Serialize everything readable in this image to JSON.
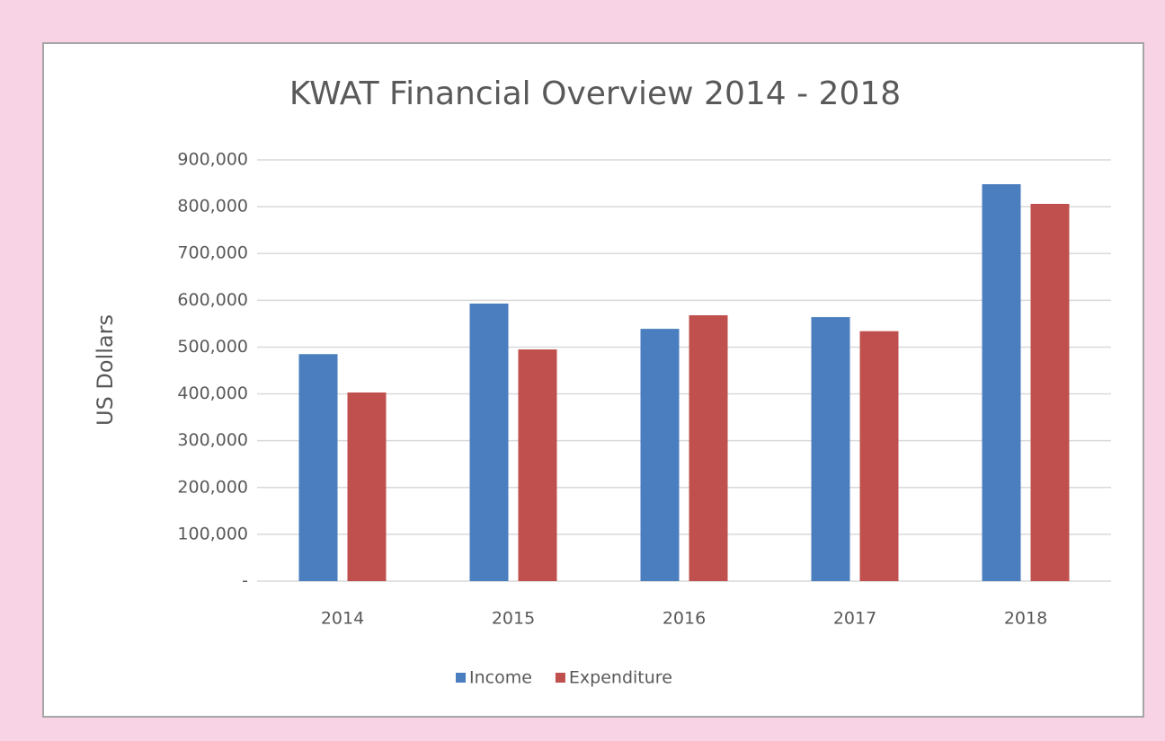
{
  "chart_data": {
    "type": "bar",
    "title": "KWAT Financial Overview 2014 - 2018",
    "y_label": "US Dollars",
    "categories": [
      "2014",
      "2015",
      "2016",
      "2017",
      "2018"
    ],
    "series": [
      {
        "name": "Income",
        "color": "#4a7ebf",
        "values": [
          485000,
          593000,
          539000,
          564000,
          848000
        ]
      },
      {
        "name": "Expenditure",
        "color": "#c0504d",
        "values": [
          403000,
          495000,
          568000,
          534000,
          806000
        ]
      }
    ],
    "ylim": [
      0,
      900000
    ],
    "yticks": [
      {
        "value": 0,
        "label": "-"
      },
      {
        "value": 100000,
        "label": "100,000"
      },
      {
        "value": 200000,
        "label": "200,000"
      },
      {
        "value": 300000,
        "label": "300,000"
      },
      {
        "value": 400000,
        "label": "400,000"
      },
      {
        "value": 500000,
        "label": "500,000"
      },
      {
        "value": 600000,
        "label": "600,000"
      },
      {
        "value": 700000,
        "label": "700,000"
      },
      {
        "value": 800000,
        "label": "800,000"
      },
      {
        "value": 900000,
        "label": "900,000"
      }
    ],
    "grid": true,
    "legend": "bottom"
  }
}
